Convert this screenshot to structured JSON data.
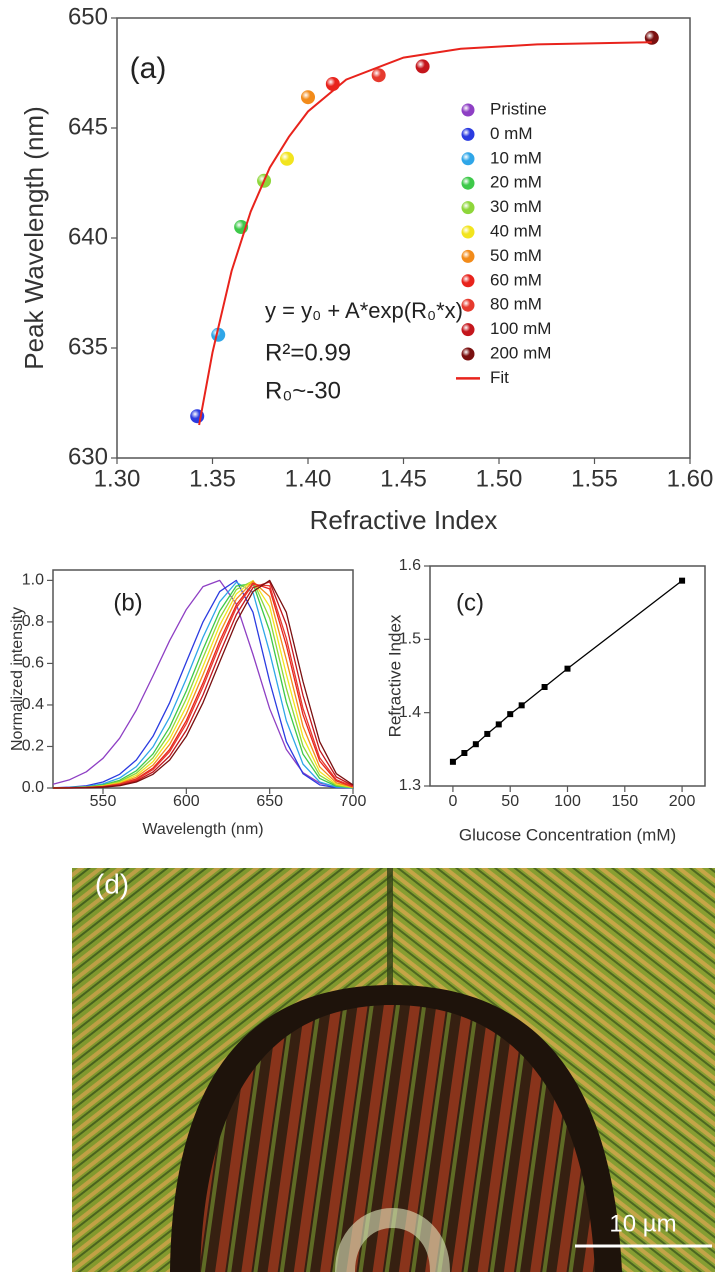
{
  "chart_data": [
    {
      "type": "scatter",
      "label": "(a)",
      "xlabel": "Refractive Index",
      "ylabel": "Peak Wavelength (nm)",
      "annotations": [
        "y = y₀ + A*exp(R₀*x)",
        "R²=0.99",
        "R₀~-30"
      ],
      "xlim": [
        1.3,
        1.6
      ],
      "xticks": [
        {
          "value": 1.3,
          "label": "1.30"
        },
        {
          "value": 1.35,
          "label": "1.35"
        },
        {
          "value": 1.4,
          "label": "1.40"
        },
        {
          "value": 1.45,
          "label": "1.45"
        },
        {
          "value": 1.5,
          "label": "1.50"
        },
        {
          "value": 1.55,
          "label": "1.55"
        },
        {
          "value": 1.6,
          "label": "1.60"
        }
      ],
      "ylim": [
        630,
        650
      ],
      "yticks": [
        630,
        635,
        640,
        645,
        650
      ],
      "legend": "right",
      "series": [
        {
          "name": "Pristine",
          "color": "#8e3fc4",
          "kind": "point",
          "x": [],
          "y": []
        },
        {
          "name": "0 mM",
          "color": "#2b3be0",
          "kind": "point",
          "x": [
            1.342
          ],
          "y": [
            631.9
          ]
        },
        {
          "name": "10 mM",
          "color": "#2fa6e8",
          "kind": "point",
          "x": [
            1.353
          ],
          "y": [
            635.6
          ]
        },
        {
          "name": "20 mM",
          "color": "#3ec94a",
          "kind": "point",
          "x": [
            1.365
          ],
          "y": [
            640.5
          ]
        },
        {
          "name": "30 mM",
          "color": "#8ed63a",
          "kind": "point",
          "x": [
            1.377
          ],
          "y": [
            642.6
          ]
        },
        {
          "name": "40 mM",
          "color": "#f2e41e",
          "kind": "point",
          "x": [
            1.389
          ],
          "y": [
            643.6
          ]
        },
        {
          "name": "50 mM",
          "color": "#f28b1a",
          "kind": "point",
          "x": [
            1.4
          ],
          "y": [
            646.4
          ]
        },
        {
          "name": "60 mM",
          "color": "#e8231c",
          "kind": "point",
          "x": [
            1.413
          ],
          "y": [
            647.0
          ]
        },
        {
          "name": "80 mM",
          "color": "#e63a2e",
          "kind": "point",
          "x": [
            1.437
          ],
          "y": [
            647.4
          ]
        },
        {
          "name": "100 mM",
          "color": "#c4161c",
          "kind": "point",
          "x": [
            1.46
          ],
          "y": [
            647.8
          ]
        },
        {
          "name": "200 mM",
          "color": "#7a1010",
          "kind": "point",
          "x": [
            1.58
          ],
          "y": [
            649.1
          ]
        },
        {
          "name": "Fit",
          "color": "#e8231c",
          "kind": "line",
          "x": [
            1.343,
            1.35,
            1.36,
            1.37,
            1.38,
            1.39,
            1.4,
            1.42,
            1.45,
            1.48,
            1.52,
            1.58
          ],
          "y": [
            631.5,
            634.8,
            638.5,
            641.2,
            643.2,
            644.6,
            645.75,
            647.2,
            648.2,
            648.6,
            648.8,
            648.9
          ]
        }
      ]
    },
    {
      "type": "line",
      "label": "(b)",
      "xlabel": "Wavelength (nm)",
      "ylabel": "Normalized intensity",
      "xlim": [
        520,
        700
      ],
      "xticks": [
        550,
        600,
        650,
        700
      ],
      "ylim": [
        0,
        1.05
      ],
      "yticks": [
        {
          "value": 0,
          "label": "0.0"
        },
        0.2,
        0.4,
        0.6,
        0.8,
        {
          "value": 1,
          "label": "1.0"
        }
      ],
      "x": [
        520,
        530,
        540,
        550,
        560,
        570,
        580,
        590,
        600,
        610,
        620,
        630,
        640,
        650,
        660,
        670,
        680,
        690,
        700
      ],
      "series": [
        {
          "color": "#8e3fc4",
          "values": [
            0.018,
            0.04,
            0.078,
            0.143,
            0.24,
            0.375,
            0.54,
            0.71,
            0.86,
            0.97,
            1,
            0.886,
            0.643,
            0.382,
            0.186,
            0.074,
            0.024,
            0.006,
            0.001
          ]
        },
        {
          "color": "#2b3be0",
          "values": [
            0.001,
            0.004,
            0.011,
            0.029,
            0.066,
            0.135,
            0.249,
            0.411,
            0.607,
            0.8,
            0.946,
            1,
            0.846,
            0.513,
            0.223,
            0.069,
            0.015,
            0.002,
            0
          ]
        },
        {
          "color": "#2fa6e8",
          "values": [
            0.001,
            0.002,
            0.007,
            0.02,
            0.048,
            0.103,
            0.198,
            0.341,
            0.526,
            0.726,
            0.897,
            0.991,
            0.942,
            0.653,
            0.324,
            0.115,
            0.029,
            0.005,
            0.001
          ]
        },
        {
          "color": "#3ec94a",
          "values": [
            0.001,
            0.002,
            0.005,
            0.015,
            0.037,
            0.083,
            0.164,
            0.293,
            0.467,
            0.667,
            0.852,
            0.973,
            0.985,
            0.755,
            0.414,
            0.163,
            0.046,
            0.009,
            0.001
          ]
        },
        {
          "color": "#8ed63a",
          "values": [
            0,
            0.001,
            0.004,
            0.012,
            0.031,
            0.071,
            0.145,
            0.263,
            0.43,
            0.627,
            0.818,
            0.956,
            0.998,
            0.817,
            0.48,
            0.202,
            0.061,
            0.013,
            0.002
          ]
        },
        {
          "color": "#f2e41e",
          "values": [
            0,
            0.001,
            0.003,
            0.01,
            0.026,
            0.061,
            0.127,
            0.236,
            0.393,
            0.586,
            0.783,
            0.935,
            0.999,
            0.874,
            0.548,
            0.246,
            0.079,
            0.018,
            0.003
          ]
        },
        {
          "color": "#f28b1a",
          "values": [
            0,
            0.001,
            0.003,
            0.008,
            0.022,
            0.052,
            0.11,
            0.21,
            0.358,
            0.546,
            0.745,
            0.91,
            0.995,
            0.922,
            0.618,
            0.297,
            0.102,
            0.025,
            0.004
          ]
        },
        {
          "color": "#e8231c",
          "values": [
            0,
            0.001,
            0.002,
            0.007,
            0.018,
            0.044,
            0.096,
            0.186,
            0.325,
            0.506,
            0.707,
            0.882,
            0.986,
            0.959,
            0.687,
            0.353,
            0.13,
            0.034,
            0.006
          ]
        },
        {
          "color": "#e63a2e",
          "values": [
            0,
            0.001,
            0.002,
            0.006,
            0.016,
            0.04,
            0.089,
            0.175,
            0.309,
            0.487,
            0.687,
            0.868,
            0.98,
            0.974,
            0.721,
            0.383,
            0.146,
            0.04,
            0.008
          ]
        },
        {
          "color": "#c4161c",
          "values": [
            0,
            0,
            0.002,
            0.005,
            0.014,
            0.034,
            0.077,
            0.154,
            0.278,
            0.448,
            0.647,
            0.835,
            0.965,
            0.993,
            0.787,
            0.446,
            0.182,
            0.053,
            0.011
          ]
        },
        {
          "color": "#7a1010",
          "values": [
            0,
            0,
            0.001,
            0.004,
            0.011,
            0.029,
            0.066,
            0.135,
            0.249,
            0.411,
            0.607,
            0.8,
            0.946,
            1,
            0.846,
            0.513,
            0.223,
            0.069,
            0.015
          ]
        }
      ]
    },
    {
      "type": "line",
      "label": "(c)",
      "xlabel": "Glucose Concentration (mM)",
      "ylabel": "Refractive Index",
      "xlim": [
        -20,
        220
      ],
      "xticks": [
        0,
        50,
        100,
        150,
        200
      ],
      "ylim": [
        1.3,
        1.6
      ],
      "yticks": [
        1.3,
        1.4,
        1.5,
        1.6
      ],
      "x": [
        0,
        10,
        20,
        30,
        40,
        50,
        60,
        80,
        100,
        200
      ],
      "values": [
        1.333,
        1.345,
        1.357,
        1.371,
        1.384,
        1.398,
        1.41,
        1.435,
        1.46,
        1.58
      ],
      "color": "#000000",
      "markers": true
    }
  ],
  "image": {
    "label": "(d)",
    "scale_bar": "10 µm"
  }
}
